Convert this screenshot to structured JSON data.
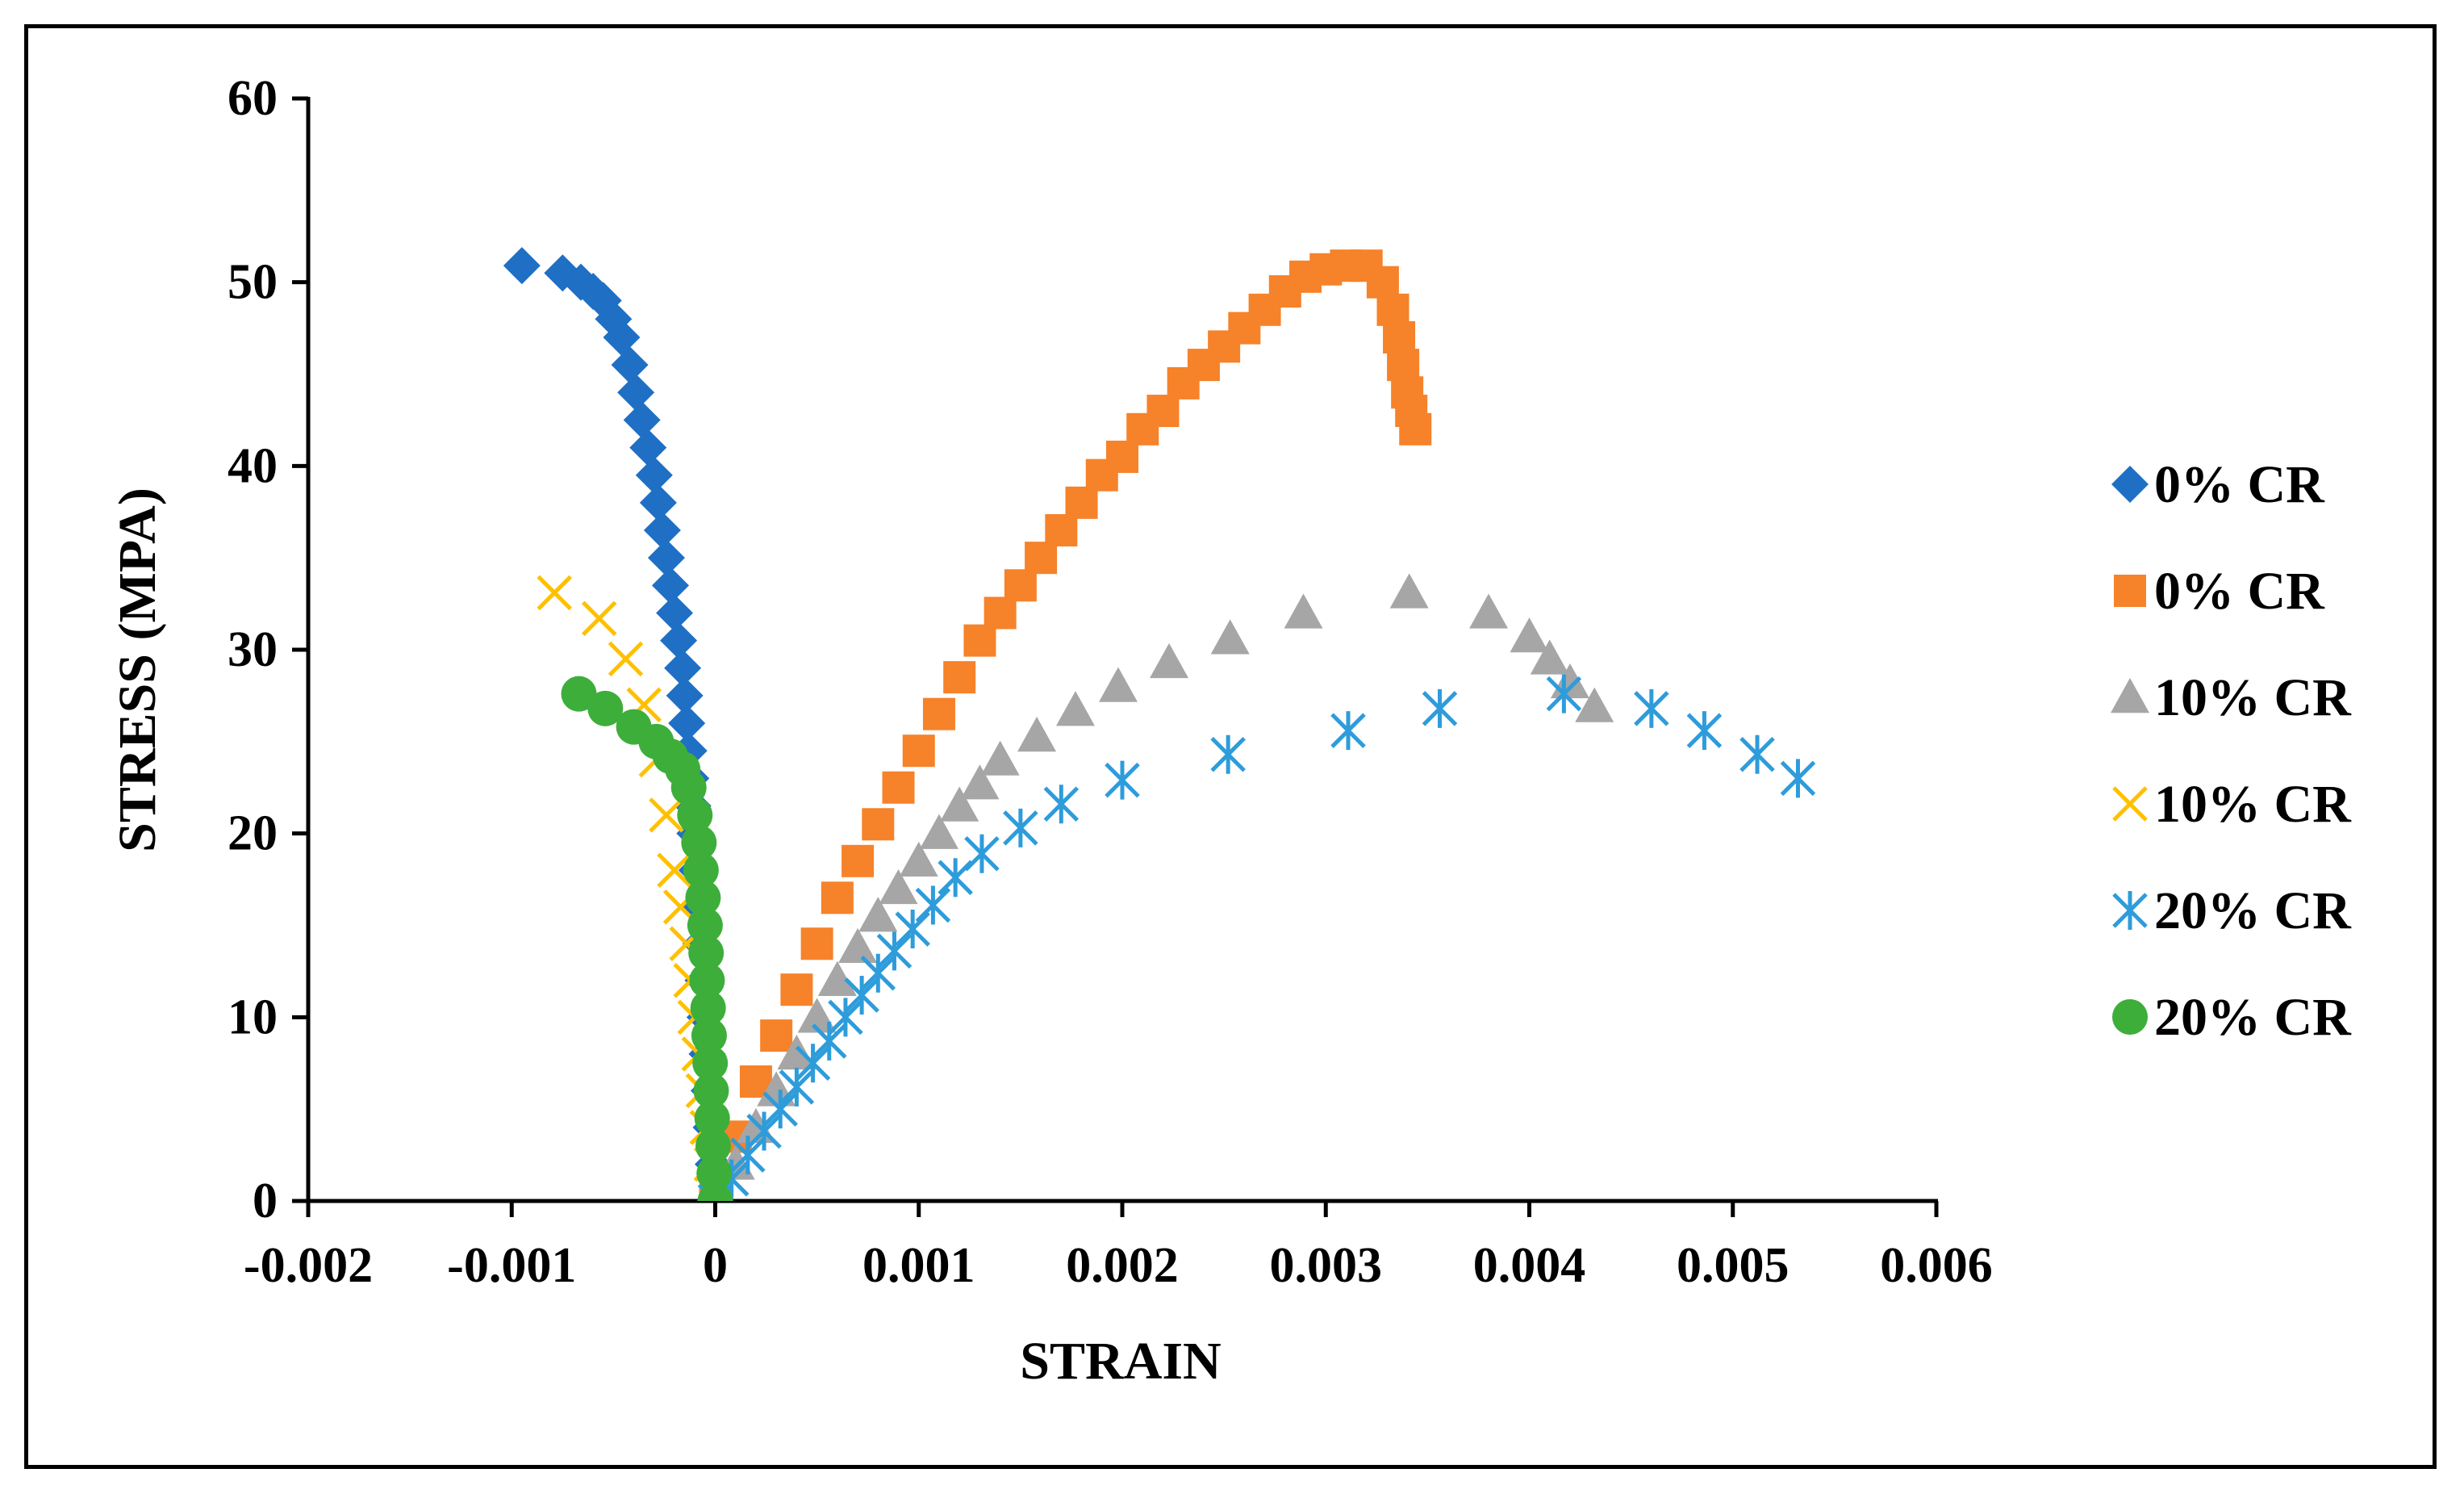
{
  "chart_data": {
    "type": "scatter",
    "title": "",
    "xlabel": "STRAIN",
    "ylabel": "STRESS (MPA)",
    "xlim": [
      -0.002,
      0.006
    ],
    "ylim": [
      0,
      60
    ],
    "grid": false,
    "legend_position": "right",
    "x_ticks": [
      -0.002,
      -0.001,
      0,
      0.001,
      0.002,
      0.003,
      0.004,
      0.005,
      0.006
    ],
    "x_tick_labels": [
      "-0.002",
      "-0.001",
      "0",
      "0.001",
      "0.002",
      "0.003",
      "0.004",
      "0.005",
      "0.006"
    ],
    "y_ticks": [
      0,
      10,
      20,
      30,
      40,
      50,
      60
    ],
    "y_tick_labels": [
      "0",
      "10",
      "20",
      "30",
      "40",
      "50",
      "60"
    ],
    "series": [
      {
        "name": "0% CR",
        "marker": "diamond",
        "color": "#1F6FC5",
        "x": [
          0,
          -1e-05,
          -2e-05,
          -3e-05,
          -4e-05,
          -5e-05,
          -6e-05,
          -7e-05,
          -8e-05,
          -9e-05,
          -0.0001,
          -0.00011,
          -0.00012,
          -0.00013,
          -0.00014,
          -0.00015,
          -0.00016,
          -0.00018,
          -0.0002,
          -0.00022,
          -0.00024,
          -0.00026,
          -0.00028,
          -0.0003,
          -0.00033,
          -0.00036,
          -0.00039,
          -0.00042,
          -0.00046,
          -0.0005,
          -0.00055,
          -0.0006,
          -0.00066,
          -0.00075,
          -0.00095
        ],
        "y": [
          0,
          2,
          4,
          6,
          8,
          10,
          12,
          14,
          16,
          18,
          20,
          21.5,
          23,
          24.5,
          26,
          27.5,
          29,
          30.5,
          32,
          33.5,
          35,
          36.5,
          38,
          39.5,
          41,
          42.5,
          44,
          45.5,
          47,
          48,
          49,
          49.5,
          50,
          50.5,
          50.9
        ]
      },
      {
        "name": "0% CR",
        "marker": "square",
        "color": "#F6822A",
        "x": [
          0,
          0.0001,
          0.0002,
          0.0003,
          0.0004,
          0.0005,
          0.0006,
          0.0007,
          0.0008,
          0.0009,
          0.001,
          0.0011,
          0.0012,
          0.0013,
          0.0014,
          0.0015,
          0.0016,
          0.0017,
          0.0018,
          0.0019,
          0.002,
          0.0021,
          0.0022,
          0.0023,
          0.0024,
          0.0025,
          0.0026,
          0.0027,
          0.0028,
          0.0029,
          0.003,
          0.0031,
          0.0032,
          0.00328,
          0.00333,
          0.00336,
          0.00338,
          0.0034,
          0.00342,
          0.00344
        ],
        "y": [
          0,
          3.5,
          6.5,
          9,
          11.5,
          14,
          16.5,
          18.5,
          20.5,
          22.5,
          24.5,
          26.5,
          28.5,
          30.5,
          32,
          33.5,
          35,
          36.5,
          38,
          39.5,
          40.5,
          42,
          43,
          44.5,
          45.5,
          46.5,
          47.5,
          48.5,
          49.5,
          50.3,
          50.7,
          50.9,
          50.9,
          50,
          48.5,
          47,
          45.5,
          44,
          43,
          42
        ]
      },
      {
        "name": "10% CR",
        "marker": "triangle",
        "color": "#A6A6A6",
        "x": [
          0,
          0.0001,
          0.0002,
          0.0003,
          0.0004,
          0.0005,
          0.0006,
          0.0007,
          0.0008,
          0.0009,
          0.001,
          0.0011,
          0.0012,
          0.0013,
          0.0014,
          0.00158,
          0.00177,
          0.00198,
          0.00223,
          0.00253,
          0.00289,
          0.00341,
          0.0038,
          0.004,
          0.0041,
          0.0042,
          0.00432
        ],
        "y": [
          0,
          2,
          4,
          6,
          8,
          10,
          12,
          13.8,
          15.5,
          17,
          18.5,
          20,
          21.5,
          22.7,
          24,
          25.3,
          26.7,
          28,
          29.3,
          30.6,
          32,
          33.1,
          32,
          30.7,
          29.5,
          28.2,
          26.9
        ]
      },
      {
        "name": "10% CR",
        "marker": "x",
        "color": "#FFC000",
        "x": [
          0,
          -2e-05,
          -4e-05,
          -6e-05,
          -8e-05,
          -0.0001,
          -0.00012,
          -0.00014,
          -0.00017,
          -0.0002,
          -0.00024,
          -0.00029,
          -0.00035,
          -0.00044,
          -0.00057,
          -0.00079
        ],
        "y": [
          0,
          2,
          4,
          6,
          8,
          10,
          12,
          14,
          16,
          18,
          21,
          24,
          27,
          29.5,
          31.7,
          33.1
        ]
      },
      {
        "name": "20% CR",
        "marker": "asterisk",
        "color": "#2E9CDB",
        "x": [
          0,
          8e-05,
          0.00016,
          0.00024,
          0.00032,
          0.0004,
          0.00048,
          0.00056,
          0.00064,
          0.00072,
          0.0008,
          0.00088,
          0.00097,
          0.00107,
          0.00118,
          0.00131,
          0.0015,
          0.0017,
          0.002,
          0.00252,
          0.00311,
          0.00356,
          0.00417,
          0.0046,
          0.00486,
          0.00512,
          0.00532
        ],
        "y": [
          0,
          1.2,
          2.5,
          3.8,
          5,
          6.2,
          7.5,
          8.7,
          10,
          11.2,
          12.4,
          13.6,
          14.8,
          16.1,
          17.6,
          18.9,
          20.3,
          21.6,
          22.9,
          24.3,
          25.6,
          26.8,
          27.6,
          26.8,
          25.6,
          24.3,
          23
        ]
      },
      {
        "name": "20% CR",
        "marker": "circle",
        "color": "#3DAE3A",
        "x": [
          0,
          -5e-06,
          -1e-05,
          -1.5e-05,
          -2e-05,
          -2.5e-05,
          -3e-05,
          -3.5e-05,
          -4e-05,
          -4.5e-05,
          -5e-05,
          -6e-05,
          -7e-05,
          -8e-05,
          -0.0001,
          -0.00013,
          -0.00016,
          -0.00022,
          -0.00029,
          -0.0004,
          -0.00054,
          -0.00067
        ],
        "y": [
          0,
          1.5,
          3,
          4.5,
          6,
          7.5,
          9,
          10.5,
          12,
          13.5,
          15,
          16.5,
          18,
          19.5,
          21,
          22.5,
          23.5,
          24.2,
          25,
          25.8,
          26.8,
          27.6
        ]
      }
    ]
  }
}
